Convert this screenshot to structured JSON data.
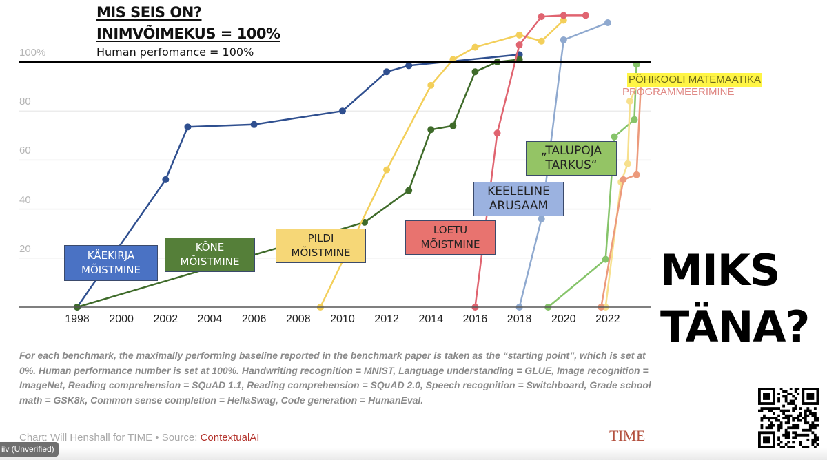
{
  "slide": {
    "heading_line1": "MIS SEIS ON?",
    "heading_line2": "INIMVÕIMEKUS = 100%",
    "heading_line3": "Human perfomance = 100%",
    "big_question_line1": "MIKS",
    "big_question_line2": "TÄNA?",
    "qr_code_icon": "qr-code"
  },
  "labels": {
    "handwriting": [
      "KÄEKIRJA",
      "MÕISTMINE"
    ],
    "speech": [
      "KÕNE",
      "MÕISTMINE"
    ],
    "image": [
      "PILDI",
      "MÕISTMINE"
    ],
    "reading": [
      "LOETU",
      "MÕISTMINE"
    ],
    "language": [
      "KEELELINE",
      "ARUSAAM"
    ],
    "commonsense": [
      "„TALUPOJA",
      "TARKUS“"
    ],
    "math": "PÕHIKOOLI MATEMAATIKA",
    "code": "PROGRAMMEERIMINE"
  },
  "footnote": "For each benchmark, the maximally performing baseline reported in the benchmark paper is taken as the “starting point”, which is set at 0%. Human performance number is set at 100%. Handwriting recognition = MNIST, Language understanding = GLUE, Image recognition = ImageNet, Reading comprehension = SQuAD 1.1, Reading comprehension = SQuAD 2.0, Speech recognition = Switchboard, Grade school math = GSK8k, Common sense completion = HellaSwag, Code generation = HumanEval.",
  "credit": {
    "prefix": "Chart: Will Henshall for TIME • Source: ",
    "source": "ContextualAI"
  },
  "publisher_logo": "TIME",
  "overlay_badge": "iiv (Unverified)",
  "chart_data": {
    "type": "line",
    "title": "",
    "xlabel": "",
    "ylabel": "",
    "xlim": [
      1997,
      2024.5
    ],
    "ylim": [
      0,
      120
    ],
    "x_ticks": [
      1998,
      2000,
      2002,
      2004,
      2006,
      2008,
      2010,
      2012,
      2014,
      2016,
      2018,
      2020,
      2022
    ],
    "y_ticks": [
      {
        "value": 20,
        "label": "20"
      },
      {
        "value": 40,
        "label": "40"
      },
      {
        "value": 60,
        "label": "60"
      },
      {
        "value": 80,
        "label": "80"
      },
      {
        "value": 100,
        "label": "100%"
      }
    ],
    "grid": true,
    "reference_line": {
      "value": 100,
      "label": "Human performance = 100%"
    },
    "series": [
      {
        "name": "Handwriting recognition (MNIST)",
        "color": "#2f4f8f",
        "points": [
          [
            1998,
            0
          ],
          [
            2002,
            52
          ],
          [
            2003,
            73.5
          ],
          [
            2006,
            74.5
          ],
          [
            2010,
            80
          ],
          [
            2012,
            96
          ],
          [
            2013,
            98.5
          ],
          [
            2018,
            103
          ]
        ]
      },
      {
        "name": "Speech recognition (Switchboard)",
        "color": "#3f6b2a",
        "points": [
          [
            1998,
            0
          ],
          [
            2011,
            34.6
          ],
          [
            2013,
            47.6
          ],
          [
            2014,
            72.4
          ],
          [
            2015,
            74
          ],
          [
            2016,
            96
          ],
          [
            2017,
            100
          ],
          [
            2018,
            101
          ]
        ]
      },
      {
        "name": "Image recognition (ImageNet)",
        "color": "#f3cf5a",
        "points": [
          [
            2009,
            0
          ],
          [
            2012,
            56
          ],
          [
            2014,
            90.5
          ],
          [
            2015,
            101
          ],
          [
            2016,
            106
          ],
          [
            2018,
            111
          ],
          [
            2019,
            108.5
          ],
          [
            2020,
            117
          ]
        ]
      },
      {
        "name": "Reading comprehension (SQuAD 1.1)",
        "color": "#e06470",
        "points": [
          [
            2016,
            0
          ],
          [
            2017,
            71
          ],
          [
            2018,
            107
          ],
          [
            2019,
            118.5
          ],
          [
            2020,
            119
          ],
          [
            2021,
            119
          ]
        ]
      },
      {
        "name": "Language understanding (GLUE)",
        "color": "#8fa9cf",
        "points": [
          [
            2018,
            0
          ],
          [
            2019,
            36
          ],
          [
            2020,
            109
          ],
          [
            2022,
            116
          ]
        ]
      },
      {
        "name": "Common sense completion (HellaSwag)",
        "color": "#86c46a",
        "points": [
          [
            2019.3,
            0
          ],
          [
            2021.9,
            19.5
          ],
          [
            2022.3,
            69.5
          ],
          [
            2023.2,
            76.5
          ],
          [
            2023.3,
            99
          ]
        ]
      },
      {
        "name": "Grade school math (GSM8k)",
        "color": "#f7e08d",
        "points": [
          [
            2021.9,
            0
          ],
          [
            2022.6,
            51
          ],
          [
            2022.9,
            58.5
          ],
          [
            2023,
            84
          ],
          [
            2023.4,
            92
          ]
        ]
      },
      {
        "name": "Code generation (HumanEval)",
        "color": "#ec9a7c",
        "points": [
          [
            2021.7,
            0
          ],
          [
            2022.7,
            52
          ],
          [
            2023.3,
            54
          ],
          [
            2023.5,
            91.5
          ]
        ]
      }
    ],
    "legend": "inline-labels"
  }
}
